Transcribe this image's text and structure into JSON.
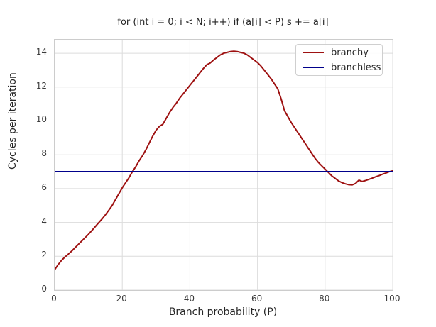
{
  "chart_data": {
    "type": "line",
    "title": "for (int i = 0; i < N; i++) if (a[i] < P) s += a[i]",
    "xlabel": "Branch probability (P)",
    "ylabel": "Cycles per iteration",
    "xlim": [
      0,
      100
    ],
    "ylim": [
      0,
      14.8
    ],
    "x_ticks": [
      0,
      20,
      40,
      60,
      80,
      100
    ],
    "y_ticks": [
      0,
      2,
      4,
      6,
      8,
      10,
      12,
      14
    ],
    "grid": true,
    "legend_position": "upper right",
    "grid_color": "#dcdcdc",
    "series": [
      {
        "name": "branchy",
        "color": "#9e1111",
        "x": [
          0,
          1,
          2,
          3,
          4,
          5,
          6,
          7,
          8,
          9,
          10,
          11,
          12,
          13,
          14,
          15,
          16,
          17,
          18,
          19,
          20,
          21,
          22,
          23,
          24,
          25,
          26,
          27,
          28,
          29,
          30,
          31,
          32,
          33,
          34,
          35,
          36,
          37,
          38,
          39,
          40,
          41,
          42,
          43,
          44,
          45,
          46,
          47,
          48,
          49,
          50,
          51,
          52,
          53,
          54,
          55,
          56,
          57,
          58,
          59,
          60,
          61,
          62,
          63,
          64,
          65,
          66,
          67,
          68,
          69,
          70,
          71,
          72,
          73,
          74,
          75,
          76,
          77,
          78,
          79,
          80,
          81,
          82,
          83,
          84,
          85,
          86,
          87,
          88,
          89,
          90,
          91,
          92,
          93,
          94,
          95,
          96,
          97,
          98,
          99,
          100
        ],
        "values": [
          1.2,
          1.5,
          1.75,
          1.95,
          2.12,
          2.3,
          2.5,
          2.7,
          2.9,
          3.1,
          3.3,
          3.52,
          3.75,
          3.98,
          4.2,
          4.45,
          4.72,
          5.0,
          5.35,
          5.7,
          6.05,
          6.35,
          6.65,
          7.0,
          7.3,
          7.65,
          7.95,
          8.3,
          8.7,
          9.1,
          9.45,
          9.68,
          9.8,
          10.15,
          10.5,
          10.8,
          11.05,
          11.35,
          11.6,
          11.85,
          12.1,
          12.35,
          12.6,
          12.85,
          13.1,
          13.32,
          13.42,
          13.6,
          13.75,
          13.9,
          14.0,
          14.05,
          14.1,
          14.12,
          14.1,
          14.05,
          14.0,
          13.9,
          13.75,
          13.6,
          13.45,
          13.25,
          13.0,
          12.75,
          12.5,
          12.2,
          11.9,
          11.3,
          10.6,
          10.25,
          9.9,
          9.6,
          9.3,
          9.0,
          8.7,
          8.4,
          8.1,
          7.8,
          7.55,
          7.35,
          7.15,
          6.95,
          6.75,
          6.6,
          6.45,
          6.35,
          6.28,
          6.23,
          6.22,
          6.3,
          6.5,
          6.42,
          6.48,
          6.55,
          6.62,
          6.7,
          6.77,
          6.85,
          6.92,
          7.0,
          7.05
        ]
      },
      {
        "name": "branchless",
        "color": "#00008b",
        "x": [
          0,
          100
        ],
        "values": [
          7.0,
          7.0
        ]
      }
    ]
  }
}
